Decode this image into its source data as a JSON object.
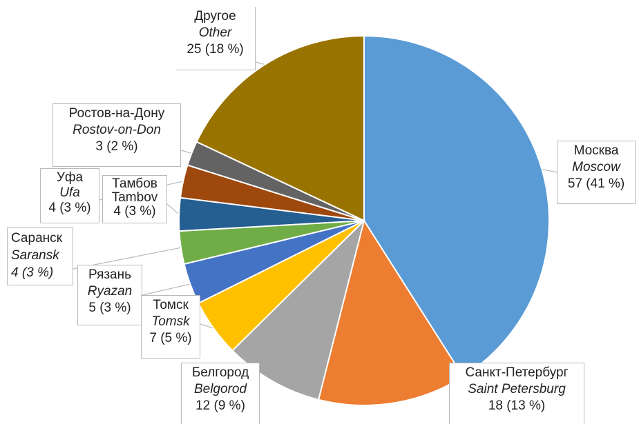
{
  "chart_data": {
    "type": "pie",
    "title": "",
    "start_angle_deg": 0,
    "direction": "clockwise",
    "slices": [
      {
        "key": "moscow",
        "label_ru": "Москва",
        "label_en": "Moscow",
        "value": 57,
        "value_label": "57 (41 %)",
        "color": "#5b9bd5"
      },
      {
        "key": "spb",
        "label_ru": "Санкт-Петербург",
        "label_en": "Saint Petersburg",
        "value": 18,
        "value_label": "18 (13 %)",
        "color": "#ed7d31"
      },
      {
        "key": "belgorod",
        "label_ru": "Белгород",
        "label_en": "Belgorod",
        "value": 12,
        "value_label": "12 (9 %)",
        "color": "#a5a5a5"
      },
      {
        "key": "tomsk",
        "label_ru": "Томск",
        "label_en": "Tomsk",
        "value": 7,
        "value_label": "7 (5 %)",
        "color": "#ffc000"
      },
      {
        "key": "ryazan",
        "label_ru": "Рязань",
        "label_en": "Ryazan",
        "value": 5,
        "value_label": "5 (3 %)",
        "color": "#4472c4"
      },
      {
        "key": "saransk",
        "label_ru": "Саранск",
        "label_en": "Saransk",
        "value": 4,
        "value_label": "4 (3 %)",
        "color": "#70ad47"
      },
      {
        "key": "tambov",
        "label_ru": "Тамбов",
        "label_en": "Tambov",
        "value": 4,
        "value_label": "4 (3 %)",
        "color": "#255e91"
      },
      {
        "key": "ufa",
        "label_ru": "Уфа",
        "label_en": "Ufa",
        "value": 4,
        "value_label": "4 (3 %)",
        "color": "#9e480e"
      },
      {
        "key": "rostov",
        "label_ru": "Ростов-на-Дону",
        "label_en": "Rostov-on-Don",
        "value": 3,
        "value_label": "3 (2 %)",
        "color": "#636363"
      },
      {
        "key": "other",
        "label_ru": "Другое",
        "label_en": "Other",
        "value": 25,
        "value_label": "25 (18 %)",
        "color": "#997300"
      }
    ]
  }
}
